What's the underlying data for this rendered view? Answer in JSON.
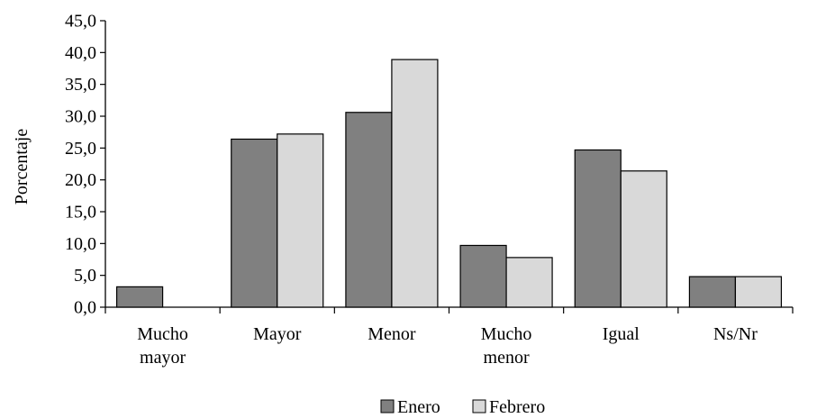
{
  "chart_data": {
    "type": "bar",
    "title": "",
    "xlabel": "",
    "ylabel": "Porcentaje",
    "ylim": [
      0,
      45
    ],
    "ytick_step": 5,
    "ytick_labels": [
      "0,0",
      "5,0",
      "10,0",
      "15,0",
      "20,0",
      "25,0",
      "30,0",
      "35,0",
      "40,0",
      "45,0"
    ],
    "categories": [
      [
        "Mucho",
        "mayor"
      ],
      [
        "Mayor"
      ],
      [
        "Menor"
      ],
      [
        "Mucho",
        "menor"
      ],
      [
        "Igual"
      ],
      [
        "Ns/Nr"
      ]
    ],
    "series": [
      {
        "name": "Enero",
        "color": "#808080",
        "values": [
          3.2,
          26.4,
          30.6,
          9.7,
          24.7,
          4.8
        ]
      },
      {
        "name": "Febrero",
        "color": "#d9d9d9",
        "values": [
          0.0,
          27.2,
          38.9,
          7.8,
          21.4,
          4.8
        ]
      }
    ],
    "grid": false,
    "legend": "bottom"
  }
}
